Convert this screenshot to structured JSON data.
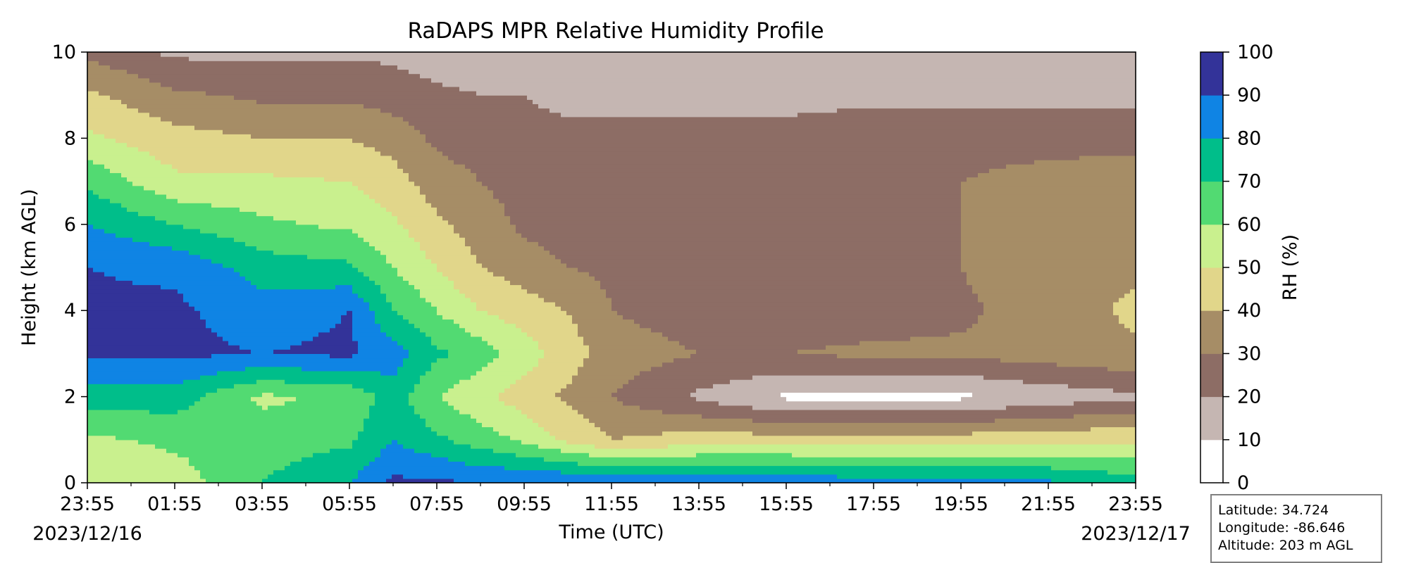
{
  "chart_data": {
    "type": "heatmap",
    "title": "RaDAPS MPR Relative Humidity Profile",
    "xlabel": "Time (UTC)",
    "ylabel": "Height (km AGL)",
    "x_ticks": [
      "23:55",
      "01:55",
      "03:55",
      "05:55",
      "07:55",
      "09:55",
      "11:55",
      "13:55",
      "15:55",
      "17:55",
      "19:55",
      "21:55",
      "23:55"
    ],
    "start_date": "2023/12/16",
    "end_date": "2023/12/17",
    "y_ticks": [
      0,
      2,
      4,
      6,
      8,
      10
    ],
    "ylim": [
      0,
      10
    ],
    "colorbar": {
      "label": "RH (%)",
      "ticks": [
        0,
        10,
        20,
        30,
        40,
        50,
        60,
        70,
        80,
        90,
        100
      ],
      "colors": [
        "#ffffff",
        "#c5b6b2",
        "#8d6d65",
        "#a68d66",
        "#e1d68a",
        "#c9f08e",
        "#52da72",
        "#00be8a",
        "#0f84e4",
        "#333399"
      ]
    },
    "profiles_times": [
      "23:55",
      "01:55",
      "03:55",
      "05:55",
      "06:55",
      "07:55",
      "08:55",
      "09:55",
      "10:55",
      "11:55",
      "13:55",
      "15:55",
      "17:55",
      "19:55",
      "21:55",
      "23:55"
    ],
    "profiles_rh_0_to_10km": [
      [
        52,
        58,
        75,
        92,
        92,
        90,
        80,
        68,
        52,
        42,
        28
      ],
      [
        55,
        62,
        75,
        92,
        92,
        88,
        70,
        52,
        44,
        32,
        18
      ],
      [
        70,
        65,
        58,
        90,
        85,
        75,
        62,
        52,
        40,
        28,
        18
      ],
      [
        80,
        68,
        62,
        92,
        90,
        72,
        58,
        50,
        40,
        28,
        18
      ],
      [
        92,
        80,
        75,
        85,
        70,
        60,
        52,
        44,
        36,
        25,
        18
      ],
      [
        92,
        72,
        60,
        72,
        60,
        50,
        42,
        35,
        28,
        22,
        15
      ],
      [
        90,
        65,
        52,
        65,
        50,
        40,
        35,
        30,
        25,
        20,
        15
      ],
      [
        90,
        58,
        45,
        55,
        45,
        35,
        28,
        26,
        22,
        20,
        15
      ],
      [
        90,
        48,
        38,
        45,
        40,
        30,
        25,
        25,
        22,
        18,
        15
      ],
      [
        88,
        40,
        30,
        35,
        30,
        28,
        25,
        25,
        22,
        18,
        15
      ],
      [
        88,
        45,
        18,
        30,
        25,
        25,
        25,
        25,
        22,
        18,
        15
      ],
      [
        88,
        45,
        8,
        30,
        25,
        25,
        25,
        25,
        22,
        18,
        15
      ],
      [
        85,
        45,
        8,
        32,
        25,
        28,
        28,
        28,
        25,
        18,
        15
      ],
      [
        85,
        45,
        8,
        32,
        28,
        30,
        30,
        30,
        25,
        18,
        15
      ],
      [
        82,
        48,
        14,
        35,
        35,
        38,
        38,
        35,
        25,
        18,
        15
      ],
      [
        75,
        48,
        18,
        38,
        42,
        38,
        38,
        38,
        25,
        18,
        15
      ]
    ]
  },
  "info": {
    "latitude": "Latitude: 34.724",
    "longitude": "Longitude: -86.646",
    "altitude": "Altitude: 203 m AGL"
  }
}
